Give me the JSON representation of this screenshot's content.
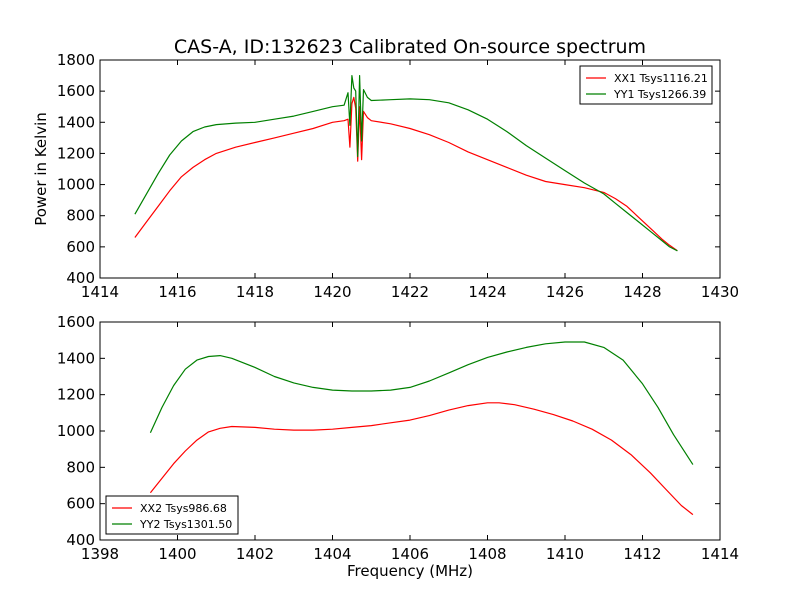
{
  "figure_title": "CAS-A, ID:132623 Calibrated On-source spectrum",
  "colors": {
    "XX": "#ff0000",
    "YY": "#008000"
  },
  "chart_data": [
    {
      "type": "line",
      "title": "CAS-A, ID:132623 Calibrated On-source spectrum",
      "xlabel": "",
      "ylabel": "Power in Kelvin",
      "xlim": [
        1414,
        1430
      ],
      "ylim": [
        400,
        1800
      ],
      "xticks": [
        1414,
        1416,
        1418,
        1420,
        1422,
        1424,
        1426,
        1428,
        1430
      ],
      "yticks": [
        400,
        600,
        800,
        1000,
        1200,
        1400,
        1600,
        1800
      ],
      "grid": false,
      "legend_position": "top-right",
      "series": [
        {
          "name": "XX1 Tsys1116.21",
          "color": "#ff0000",
          "x": [
            1414.9,
            1415.2,
            1415.5,
            1415.8,
            1416.1,
            1416.4,
            1416.7,
            1417.0,
            1417.5,
            1418.0,
            1418.5,
            1419.0,
            1419.5,
            1420.0,
            1420.3,
            1420.4,
            1420.45,
            1420.5,
            1420.55,
            1420.6,
            1420.65,
            1420.7,
            1420.75,
            1420.8,
            1420.9,
            1421.0,
            1421.5,
            1422.0,
            1422.5,
            1423.0,
            1423.5,
            1424.0,
            1424.5,
            1425.0,
            1425.5,
            1426.0,
            1426.5,
            1427.0,
            1427.3,
            1427.6,
            1427.9,
            1428.2,
            1428.5,
            1428.7,
            1428.9
          ],
          "y": [
            660,
            760,
            860,
            960,
            1050,
            1110,
            1160,
            1200,
            1240,
            1270,
            1300,
            1330,
            1360,
            1400,
            1410,
            1420,
            1240,
            1520,
            1560,
            1490,
            1150,
            1500,
            1160,
            1470,
            1430,
            1410,
            1390,
            1360,
            1320,
            1270,
            1210,
            1160,
            1110,
            1060,
            1020,
            1000,
            980,
            950,
            910,
            860,
            790,
            720,
            650,
            610,
            575
          ]
        },
        {
          "name": "YY1 Tsys1266.39",
          "color": "#008000",
          "x": [
            1414.9,
            1415.2,
            1415.5,
            1415.8,
            1416.1,
            1416.4,
            1416.7,
            1417.0,
            1417.5,
            1418.0,
            1418.5,
            1419.0,
            1419.5,
            1420.0,
            1420.3,
            1420.4,
            1420.45,
            1420.5,
            1420.55,
            1420.6,
            1420.65,
            1420.7,
            1420.75,
            1420.8,
            1420.9,
            1421.0,
            1421.5,
            1422.0,
            1422.5,
            1423.0,
            1423.5,
            1424.0,
            1424.5,
            1425.0,
            1425.5,
            1426.0,
            1426.5,
            1427.0,
            1427.3,
            1427.6,
            1427.9,
            1428.2,
            1428.5,
            1428.7,
            1428.9
          ],
          "y": [
            810,
            940,
            1070,
            1190,
            1280,
            1340,
            1370,
            1385,
            1395,
            1400,
            1420,
            1440,
            1470,
            1500,
            1510,
            1590,
            1380,
            1700,
            1620,
            1600,
            1180,
            1700,
            1280,
            1610,
            1560,
            1540,
            1545,
            1550,
            1545,
            1525,
            1480,
            1420,
            1340,
            1250,
            1170,
            1090,
            1010,
            940,
            880,
            820,
            760,
            700,
            640,
            600,
            575
          ]
        }
      ]
    },
    {
      "type": "line",
      "title": "",
      "xlabel": "Frequency (MHz)",
      "ylabel": "",
      "xlim": [
        1398,
        1414
      ],
      "ylim": [
        400,
        1600
      ],
      "xticks": [
        1398,
        1400,
        1402,
        1404,
        1406,
        1408,
        1410,
        1412,
        1414
      ],
      "yticks": [
        400,
        600,
        800,
        1000,
        1200,
        1400,
        1600
      ],
      "grid": false,
      "legend_position": "bottom-left",
      "series": [
        {
          "name": "XX2 Tsys986.68",
          "color": "#ff0000",
          "x": [
            1399.3,
            1399.6,
            1399.9,
            1400.2,
            1400.5,
            1400.8,
            1401.1,
            1401.4,
            1402.0,
            1402.5,
            1403.0,
            1403.5,
            1404.0,
            1404.5,
            1405.0,
            1405.5,
            1406.0,
            1406.5,
            1407.0,
            1407.5,
            1408.0,
            1408.3,
            1408.7,
            1409.2,
            1409.7,
            1410.2,
            1410.7,
            1411.2,
            1411.7,
            1412.2,
            1412.6,
            1413.0,
            1413.3
          ],
          "y": [
            660,
            740,
            820,
            890,
            950,
            995,
            1015,
            1025,
            1020,
            1010,
            1005,
            1005,
            1010,
            1020,
            1030,
            1045,
            1060,
            1085,
            1115,
            1140,
            1155,
            1155,
            1145,
            1120,
            1090,
            1055,
            1010,
            950,
            870,
            770,
            680,
            590,
            540
          ]
        },
        {
          "name": "YY2 Tsys1301.50",
          "color": "#008000",
          "x": [
            1399.3,
            1399.6,
            1399.9,
            1400.2,
            1400.5,
            1400.8,
            1401.1,
            1401.4,
            1402.0,
            1402.5,
            1403.0,
            1403.5,
            1404.0,
            1404.5,
            1405.0,
            1405.5,
            1406.0,
            1406.5,
            1407.0,
            1407.5,
            1408.0,
            1408.5,
            1409.0,
            1409.5,
            1410.0,
            1410.5,
            1411.0,
            1411.5,
            1412.0,
            1412.4,
            1412.8,
            1413.3
          ],
          "y": [
            990,
            1130,
            1250,
            1340,
            1390,
            1410,
            1415,
            1400,
            1350,
            1300,
            1265,
            1240,
            1225,
            1220,
            1220,
            1225,
            1240,
            1275,
            1320,
            1365,
            1405,
            1435,
            1460,
            1480,
            1490,
            1490,
            1460,
            1390,
            1260,
            1130,
            980,
            815
          ]
        }
      ]
    }
  ]
}
